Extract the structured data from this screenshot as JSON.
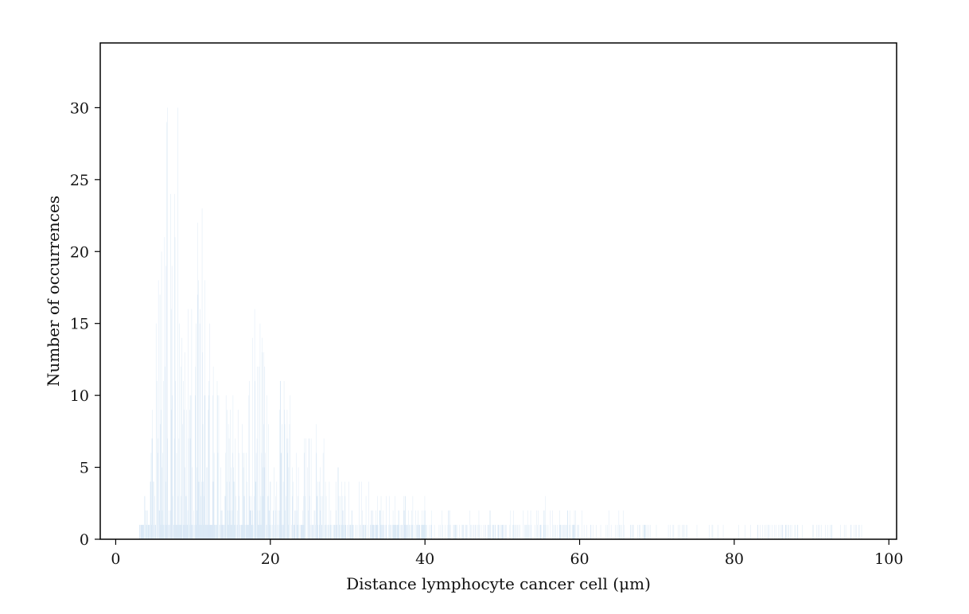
{
  "chart_data": {
    "type": "bar",
    "subtype": "histogram",
    "title": "",
    "xlabel": "Distance lymphocyte  cancer cell (μm)",
    "ylabel": "Number of occurrences",
    "xlim": [
      -2,
      101
    ],
    "ylim": [
      0,
      34.5
    ],
    "xticks": [
      0,
      20,
      40,
      60,
      80,
      100
    ],
    "yticks": [
      0,
      5,
      10,
      15,
      20,
      25,
      30
    ],
    "grid": false,
    "legend": "none",
    "bar_color": "#5b9bd5",
    "bin_width": 0.05,
    "envelope_x": [
      3,
      4,
      4.5,
      5,
      5.5,
      6,
      6.5,
      7,
      7.5,
      8,
      8.5,
      9,
      9.5,
      10,
      11,
      12,
      13,
      14,
      15,
      16,
      17,
      18,
      20,
      22,
      24,
      26,
      28,
      30,
      32,
      35,
      38,
      40,
      45,
      50,
      55,
      60,
      65,
      70,
      75,
      80,
      85,
      90,
      97
    ],
    "envelope_y": [
      3,
      4,
      8,
      14,
      20,
      27,
      30,
      33,
      28,
      30,
      26,
      23,
      22,
      19,
      25,
      16,
      14,
      12,
      15,
      12,
      11,
      19,
      9,
      12,
      7,
      8,
      5,
      5,
      6,
      3,
      3,
      3,
      2,
      2,
      3,
      2,
      2,
      1,
      1,
      1,
      1,
      1,
      1
    ]
  }
}
